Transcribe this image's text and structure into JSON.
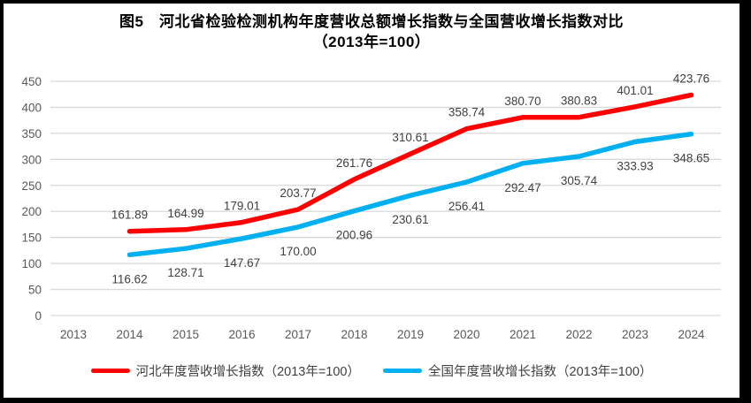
{
  "title": {
    "line1": "图5　河北省检验检测机构年度营收总额增长指数与全国营收增长指数对比",
    "line2": "（2013年=100）"
  },
  "chart_data": {
    "type": "line",
    "x": [
      2013,
      2014,
      2015,
      2016,
      2017,
      2018,
      2019,
      2020,
      2021,
      2022,
      2023,
      2024
    ],
    "series": [
      {
        "name": "河北年度营收增长指数（2013年=100）",
        "color": "#FF0000",
        "label_position": "above",
        "values": [
          null,
          161.89,
          164.99,
          179.01,
          203.77,
          261.76,
          310.61,
          358.74,
          380.7,
          380.83,
          401.01,
          423.76
        ]
      },
      {
        "name": "全国年度营收增长指数（2013年=100）",
        "color": "#00B0F0",
        "label_position": "below",
        "values": [
          null,
          116.62,
          128.71,
          147.67,
          170.0,
          200.96,
          230.61,
          256.41,
          292.47,
          305.74,
          333.93,
          348.65
        ]
      }
    ],
    "ylim": [
      0,
      450
    ],
    "ytick_step": 50,
    "value_decimals": 2,
    "grid": true,
    "legend_position": "bottom",
    "axis_label_color": "#595959",
    "data_label_color": "#404040",
    "gridline_color": "#D9D9D9",
    "background_color": "#FFFFFF",
    "frame_color": "#000000"
  }
}
